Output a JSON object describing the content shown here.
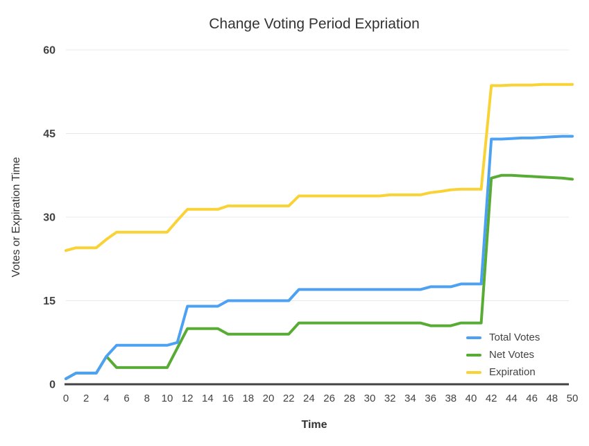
{
  "styles": {
    "background": "#FFFFFF",
    "grid_color": "#E8E8E8",
    "axis_color": "#424242",
    "title_color": "#333333",
    "tick_label_color": "#424242"
  },
  "chart_data": {
    "type": "line",
    "title": "Change Voting Period Expriation",
    "xlabel": "Time",
    "ylabel": "Votes or Expiration Time",
    "x_range": [
      0,
      50
    ],
    "y_range": [
      0,
      60
    ],
    "x_step": 1,
    "x_ticks": [
      0,
      2,
      4,
      6,
      8,
      10,
      12,
      14,
      16,
      18,
      20,
      22,
      24,
      26,
      28,
      30,
      32,
      34,
      36,
      38,
      40,
      42,
      44,
      46,
      48,
      50
    ],
    "y_ticks": [
      0,
      15,
      30,
      45,
      60
    ],
    "grid": "horizontal gridlines at y ticks, dark baseline at 0",
    "legend_position": "inside bottom-right",
    "draw_order": [
      1,
      0,
      2
    ],
    "series": [
      {
        "name": "Total Votes",
        "color": "#4DA1F2",
        "values": [
          1,
          2,
          2,
          2,
          5,
          7,
          7,
          7,
          7,
          7,
          7,
          7.5,
          14,
          14,
          14,
          14,
          15,
          15,
          15,
          15,
          15,
          15,
          15,
          17,
          17,
          17,
          17,
          17,
          17,
          17,
          17,
          17,
          17,
          17,
          17,
          17,
          17.5,
          17.5,
          17.5,
          18,
          18,
          18,
          44,
          44,
          44.1,
          44.2,
          44.2,
          44.3,
          44.4,
          44.5,
          44.5
        ]
      },
      {
        "name": "Net Votes",
        "color": "#58AC35",
        "values": [
          1,
          2,
          2,
          2,
          5,
          3,
          3,
          3,
          3,
          3,
          3,
          6.5,
          10,
          10,
          10,
          10,
          9,
          9,
          9,
          9,
          9,
          9,
          9,
          11,
          11,
          11,
          11,
          11,
          11,
          11,
          11,
          11,
          11,
          11,
          11,
          11,
          10.5,
          10.5,
          10.5,
          11,
          11,
          11,
          37,
          37.5,
          37.5,
          37.4,
          37.3,
          37.2,
          37.1,
          37,
          36.8
        ]
      },
      {
        "name": "Expiration",
        "color": "#F9D335",
        "values": [
          24,
          24.5,
          24.5,
          24.5,
          26,
          27.3,
          27.3,
          27.3,
          27.3,
          27.3,
          27.3,
          29.4,
          31.4,
          31.4,
          31.4,
          31.4,
          32,
          32,
          32,
          32,
          32,
          32,
          32,
          33.8,
          33.8,
          33.8,
          33.8,
          33.8,
          33.8,
          33.8,
          33.8,
          33.8,
          34,
          34,
          34,
          34,
          34.4,
          34.6,
          34.9,
          35,
          35,
          35,
          53.6,
          53.6,
          53.7,
          53.7,
          53.7,
          53.8,
          53.8,
          53.8,
          53.8
        ]
      }
    ]
  }
}
